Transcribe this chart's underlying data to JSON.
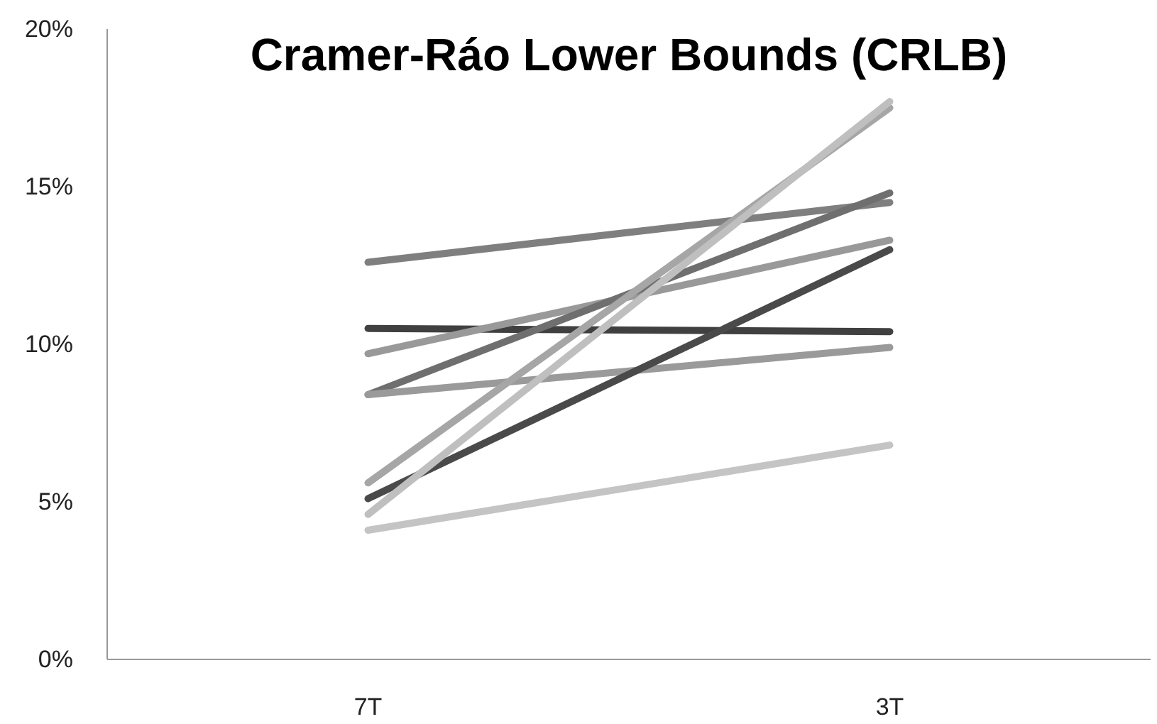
{
  "chart_data": {
    "type": "line",
    "title": "Cramer-Ráo Lower Bounds (CRLB)",
    "categories": [
      "7T",
      "3T"
    ],
    "ylim": [
      0,
      20
    ],
    "yticks": [
      {
        "value": 0,
        "label": "0%"
      },
      {
        "value": 5,
        "label": "5%"
      },
      {
        "value": 10,
        "label": "10%"
      },
      {
        "value": 15,
        "label": "15%"
      },
      {
        "value": 20,
        "label": "20%"
      }
    ],
    "grid": false,
    "marker": "none",
    "line_style": "solid",
    "series": [
      {
        "color": "#7f7f7f",
        "values": [
          12.6,
          14.5
        ]
      },
      {
        "color": "#404040",
        "values": [
          10.5,
          10.4
        ]
      },
      {
        "color": "#999999",
        "values": [
          9.7,
          13.3
        ]
      },
      {
        "color": "#6f6f6f",
        "values": [
          8.4,
          14.8
        ]
      },
      {
        "color": "#9a9a9a",
        "values": [
          8.4,
          9.9
        ]
      },
      {
        "color": "#a6a6a6",
        "values": [
          5.6,
          17.5
        ]
      },
      {
        "color": "#4a4a4a",
        "values": [
          5.1,
          13.0
        ]
      },
      {
        "color": "#bfbfbf",
        "values": [
          4.6,
          17.7
        ]
      },
      {
        "color": "#c4c4c4",
        "values": [
          4.1,
          6.8
        ]
      }
    ]
  }
}
